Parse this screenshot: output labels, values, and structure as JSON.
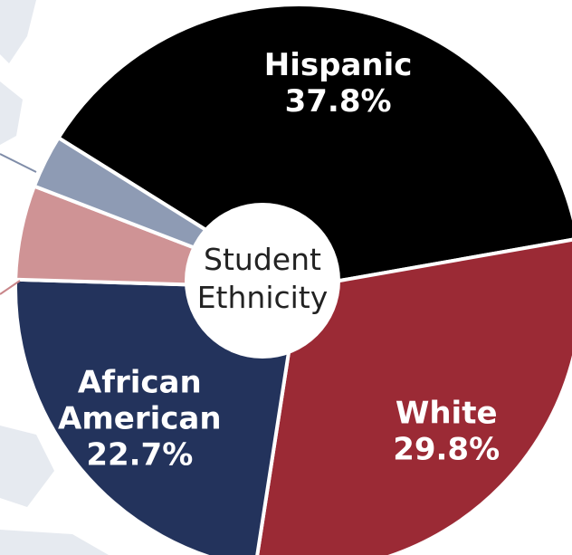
{
  "chart_data": {
    "type": "pie",
    "style": "donut",
    "center_label": [
      "Student",
      "Ethnicity"
    ],
    "series": [
      {
        "label_lines": [
          "Hispanic",
          "37.8%"
        ],
        "value": 37.8,
        "color": "#000000",
        "labeled": true
      },
      {
        "label_lines": [
          "White",
          "29.8%"
        ],
        "value": 29.8,
        "color": "#9b2a35",
        "labeled": true
      },
      {
        "label_lines": [
          "African",
          "American",
          "22.7%"
        ],
        "value": 22.7,
        "color": "#23335c",
        "labeled": true
      },
      {
        "label_lines": [],
        "value": 5.3,
        "color": "#cf9395",
        "labeled": false
      },
      {
        "label_lines": [],
        "value": 3.0,
        "color": "#8e9bb4",
        "labeled": false
      }
    ],
    "decorations": {
      "background_map_color": "#e6eaf0",
      "leader_line_colors": [
        "#7f8ca8",
        "#c9868a"
      ]
    }
  }
}
